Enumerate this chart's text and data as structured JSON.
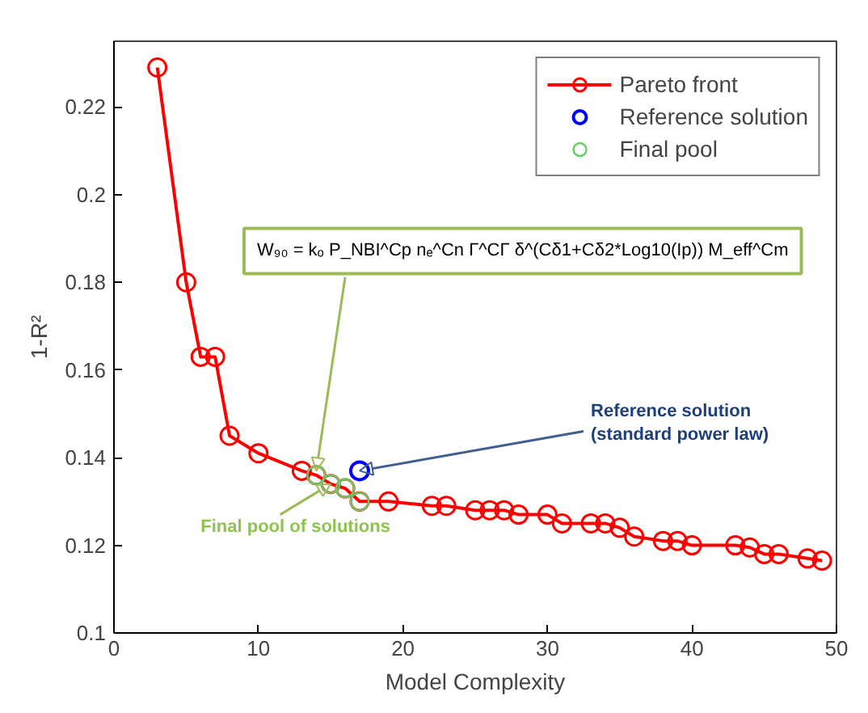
{
  "chart_data": {
    "type": "line",
    "xlabel": "Model Complexity",
    "ylabel": "1-R²",
    "xlim": [
      0,
      50
    ],
    "ylim": [
      0.1,
      0.235
    ],
    "xticks": [
      0,
      10,
      20,
      30,
      40,
      50
    ],
    "yticks": [
      0.1,
      0.12,
      0.14,
      0.16,
      0.18,
      0.2,
      0.22
    ],
    "grid": false,
    "legend": "top right",
    "marker": "circle",
    "line_style": "solid",
    "series": [
      {
        "name": "Pareto front",
        "color": "#ff0000",
        "x": [
          3,
          5,
          6,
          7,
          8,
          10,
          13,
          14,
          15,
          16,
          17,
          19,
          22,
          23,
          25,
          26,
          27,
          28,
          30,
          31,
          33,
          34,
          35,
          36,
          38,
          39,
          40,
          43,
          44,
          45,
          46,
          48,
          49
        ],
        "values": [
          0.229,
          0.18,
          0.163,
          0.163,
          0.145,
          0.141,
          0.137,
          0.136,
          0.134,
          0.133,
          0.13,
          0.13,
          0.129,
          0.129,
          0.128,
          0.128,
          0.128,
          0.127,
          0.127,
          0.125,
          0.125,
          0.125,
          0.124,
          0.122,
          0.121,
          0.121,
          0.12,
          0.12,
          0.1195,
          0.118,
          0.118,
          0.117,
          0.1165
        ]
      },
      {
        "name": "Reference solution",
        "type": "scatter",
        "color": "#0000ff",
        "x": [
          17
        ],
        "values": [
          0.137
        ]
      },
      {
        "name": "Final pool",
        "type": "scatter",
        "color": "#66cc66",
        "x": [
          14,
          15,
          16,
          17
        ],
        "values": [
          0.136,
          0.134,
          0.133,
          0.13
        ]
      }
    ],
    "annotations": [
      {
        "text": "W₉₀ = kₒ P_NBI^Cp nₑ^Cn Γ^CΓ δ^(Cδ1+Cδ2*Log10(Ip)) M_eff^Cm",
        "x": 14,
        "y": 0.137
      },
      {
        "text": "Reference solution\n(standard power law)",
        "x": 17,
        "y": 0.137
      },
      {
        "text": "Final pool of solutions",
        "x": 15,
        "y": 0.134
      }
    ]
  }
}
